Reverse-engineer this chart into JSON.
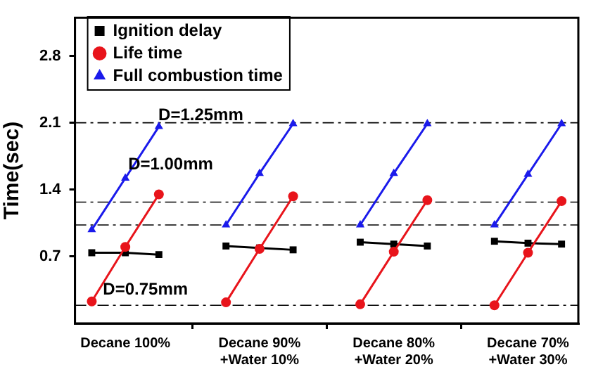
{
  "chart_data": {
    "type": "line",
    "ylabel": "Time(sec)",
    "categories": [
      null,
      "Decane 100%",
      null,
      null,
      null,
      "Decane 90%\n+Water 10%",
      null,
      null,
      null,
      "Decane 80%\n+Water 20%",
      null,
      null,
      null,
      "Decane 70%\n+Water 30%",
      null
    ],
    "ylim": [
      0,
      3.2
    ],
    "yticks": [
      0.7,
      1.4,
      2.1,
      2.8
    ],
    "series": [
      {
        "name": "Ignition delay",
        "color": "#000000",
        "marker": "square",
        "values": [
          0.74,
          0.74,
          0.72,
          null,
          0.81,
          0.79,
          0.77,
          null,
          0.85,
          0.83,
          0.81,
          null,
          0.86,
          0.84,
          0.83
        ]
      },
      {
        "name": "Life time",
        "color": "#e8141b",
        "marker": "circle",
        "values": [
          0.23,
          0.8,
          1.35,
          null,
          0.22,
          0.78,
          1.33,
          null,
          0.2,
          0.75,
          1.29,
          null,
          0.19,
          0.74,
          1.28
        ]
      },
      {
        "name": "Full combustion time",
        "color": "#1a1aeb",
        "marker": "triangle",
        "values": [
          0.98,
          1.52,
          2.06,
          null,
          1.03,
          1.57,
          2.09,
          null,
          1.03,
          1.57,
          2.09,
          null,
          1.03,
          1.56,
          2.09
        ]
      }
    ],
    "ref_lines": [
      {
        "axis": "y",
        "value": 0.19,
        "color": "#000000",
        "line_style": "dashed"
      },
      {
        "axis": "y",
        "value": 1.03,
        "color": "#000000",
        "line_style": "dashed"
      },
      {
        "axis": "y",
        "value": 1.27,
        "color": "#000000",
        "line_style": "dashed"
      },
      {
        "axis": "y",
        "value": 2.1,
        "color": "#000000",
        "line_style": "dashed"
      }
    ],
    "annotations": [
      "D=0.75mm",
      "D=1.00mm",
      "D=1.25mm"
    ],
    "grid": false,
    "legend": "top left"
  }
}
